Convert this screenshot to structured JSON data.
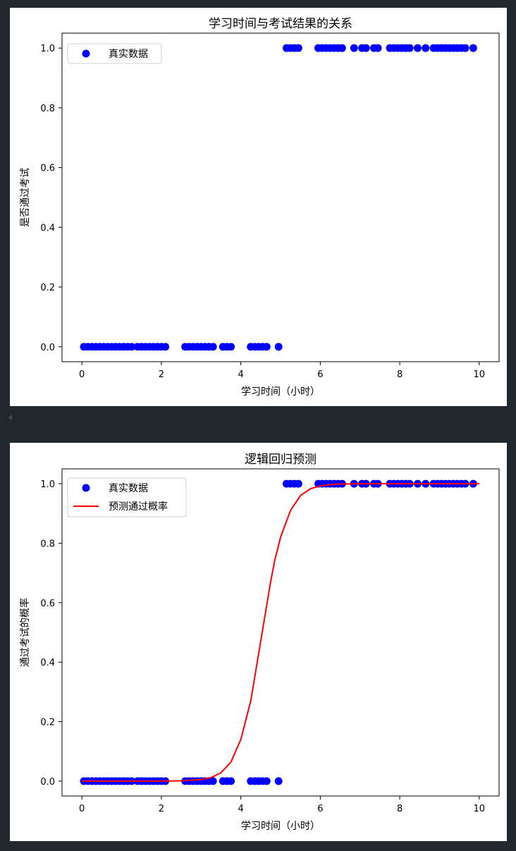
{
  "chart_data": [
    {
      "type": "scatter",
      "title": "学习时间与考试结果的关系",
      "xlabel": "学习时间（小时）",
      "ylabel": "是否通过考试",
      "xlim": [
        -0.5,
        10.5
      ],
      "ylim": [
        -0.05,
        1.05
      ],
      "xticks": [
        0,
        2,
        4,
        6,
        8,
        10
      ],
      "yticks": [
        0.0,
        0.2,
        0.4,
        0.6,
        0.8,
        1.0
      ],
      "tick_labels_x": [
        "0",
        "2",
        "4",
        "6",
        "8",
        "10"
      ],
      "tick_labels_y": [
        "0.0",
        "0.2",
        "0.4",
        "0.6",
        "0.8",
        "1.0"
      ],
      "legend": "top-left",
      "grid": false,
      "series": [
        {
          "name": "真实数据",
          "kind": "scatter",
          "color": "#0000ff",
          "x": [
            0.05,
            0.15,
            0.25,
            0.35,
            0.45,
            0.55,
            0.65,
            0.75,
            0.85,
            0.95,
            1.05,
            1.15,
            1.25,
            1.4,
            1.5,
            1.6,
            1.7,
            1.8,
            1.9,
            2.0,
            2.1,
            2.6,
            2.7,
            2.8,
            2.9,
            3.0,
            3.1,
            3.2,
            3.3,
            3.55,
            3.65,
            3.75,
            4.25,
            4.35,
            4.45,
            4.55,
            4.65,
            4.95,
            5.15,
            5.25,
            5.35,
            5.45,
            5.95,
            6.05,
            6.15,
            6.25,
            6.35,
            6.45,
            6.55,
            6.85,
            7.05,
            7.15,
            7.35,
            7.45,
            7.75,
            7.85,
            7.95,
            8.05,
            8.15,
            8.25,
            8.45,
            8.65,
            8.85,
            8.95,
            9.05,
            9.15,
            9.25,
            9.35,
            9.45,
            9.55,
            9.65,
            9.85
          ],
          "y": [
            0,
            0,
            0,
            0,
            0,
            0,
            0,
            0,
            0,
            0,
            0,
            0,
            0,
            0,
            0,
            0,
            0,
            0,
            0,
            0,
            0,
            0,
            0,
            0,
            0,
            0,
            0,
            0,
            0,
            0,
            0,
            0,
            0,
            0,
            0,
            0,
            0,
            0,
            1,
            1,
            1,
            1,
            1,
            1,
            1,
            1,
            1,
            1,
            1,
            1,
            1,
            1,
            1,
            1,
            1,
            1,
            1,
            1,
            1,
            1,
            1,
            1,
            1,
            1,
            1,
            1,
            1,
            1,
            1,
            1,
            1,
            1
          ]
        }
      ]
    },
    {
      "type": "line",
      "title": "逻辑回归预测",
      "xlabel": "学习时间（小时）",
      "ylabel": "通过考试的概率",
      "xlim": [
        -0.5,
        10.5
      ],
      "ylim": [
        -0.05,
        1.05
      ],
      "xticks": [
        0,
        2,
        4,
        6,
        8,
        10
      ],
      "yticks": [
        0.0,
        0.2,
        0.4,
        0.6,
        0.8,
        1.0
      ],
      "tick_labels_x": [
        "0",
        "2",
        "4",
        "6",
        "8",
        "10"
      ],
      "tick_labels_y": [
        "0.0",
        "0.2",
        "0.4",
        "0.6",
        "0.8",
        "1.0"
      ],
      "legend": "top-left",
      "grid": false,
      "series": [
        {
          "name": "真实数据",
          "kind": "scatter",
          "color": "#0000ff",
          "x": [
            0.05,
            0.15,
            0.25,
            0.35,
            0.45,
            0.55,
            0.65,
            0.75,
            0.85,
            0.95,
            1.05,
            1.15,
            1.25,
            1.4,
            1.5,
            1.6,
            1.7,
            1.8,
            1.9,
            2.0,
            2.1,
            2.6,
            2.7,
            2.8,
            2.9,
            3.0,
            3.1,
            3.2,
            3.3,
            3.55,
            3.65,
            3.75,
            4.25,
            4.35,
            4.45,
            4.55,
            4.65,
            4.95,
            5.15,
            5.25,
            5.35,
            5.45,
            5.95,
            6.05,
            6.15,
            6.25,
            6.35,
            6.45,
            6.55,
            6.85,
            7.05,
            7.15,
            7.35,
            7.45,
            7.75,
            7.85,
            7.95,
            8.05,
            8.15,
            8.25,
            8.45,
            8.65,
            8.85,
            8.95,
            9.05,
            9.15,
            9.25,
            9.35,
            9.45,
            9.55,
            9.65,
            9.85
          ],
          "y": [
            0,
            0,
            0,
            0,
            0,
            0,
            0,
            0,
            0,
            0,
            0,
            0,
            0,
            0,
            0,
            0,
            0,
            0,
            0,
            0,
            0,
            0,
            0,
            0,
            0,
            0,
            0,
            0,
            0,
            0,
            0,
            0,
            0,
            0,
            0,
            0,
            0,
            0,
            1,
            1,
            1,
            1,
            1,
            1,
            1,
            1,
            1,
            1,
            1,
            1,
            1,
            1,
            1,
            1,
            1,
            1,
            1,
            1,
            1,
            1,
            1,
            1,
            1,
            1,
            1,
            1,
            1,
            1,
            1,
            1,
            1,
            1
          ]
        },
        {
          "name": "预测通过概率",
          "kind": "line",
          "color": "#ff0000",
          "x": [
            0,
            0.5,
            1,
            1.5,
            2,
            2.5,
            3,
            3.25,
            3.5,
            3.75,
            4,
            4.25,
            4.5,
            4.75,
            4.85,
            5,
            5.25,
            5.5,
            5.75,
            6,
            6.25,
            6.5,
            7,
            7.5,
            8,
            8.5,
            9,
            9.5,
            10
          ],
          "y": [
            0.0,
            0.0,
            0.0,
            0.0,
            0.0,
            0.001,
            0.005,
            0.012,
            0.028,
            0.064,
            0.14,
            0.27,
            0.47,
            0.67,
            0.74,
            0.82,
            0.91,
            0.96,
            0.983,
            0.993,
            0.997,
            0.999,
            1.0,
            1.0,
            1.0,
            1.0,
            1.0,
            1.0,
            1.0
          ]
        }
      ]
    }
  ]
}
